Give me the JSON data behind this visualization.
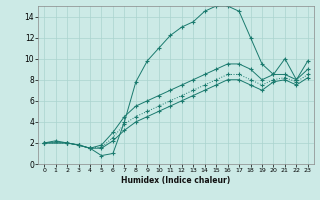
{
  "xlabel": "Humidex (Indice chaleur)",
  "bg_color": "#cceae6",
  "grid_color": "#aad4cf",
  "line_color": "#1a7a6e",
  "xlim": [
    -0.5,
    23.5
  ],
  "ylim": [
    0,
    15
  ],
  "xticks": [
    0,
    1,
    2,
    3,
    4,
    5,
    6,
    7,
    8,
    9,
    10,
    11,
    12,
    13,
    14,
    15,
    16,
    17,
    18,
    19,
    20,
    21,
    22,
    23
  ],
  "yticks": [
    0,
    2,
    4,
    6,
    8,
    10,
    12,
    14
  ],
  "series": [
    {
      "x": [
        0,
        1,
        2,
        3,
        4,
        5,
        6,
        7,
        8,
        9,
        10,
        11,
        12,
        13,
        14,
        15,
        16,
        17,
        18,
        19,
        20,
        21,
        22,
        23
      ],
      "y": [
        2,
        2.2,
        2,
        1.8,
        1.5,
        0.8,
        1.0,
        4.0,
        7.8,
        9.8,
        11.0,
        12.2,
        13.0,
        13.5,
        14.5,
        15.0,
        15.0,
        14.5,
        12.0,
        9.5,
        8.5,
        10.0,
        8.0,
        9.8
      ],
      "style": "solid"
    },
    {
      "x": [
        0,
        2,
        3,
        4,
        5,
        6,
        7,
        8,
        9,
        10,
        11,
        12,
        13,
        14,
        15,
        16,
        17,
        18,
        19,
        20,
        21,
        22,
        23
      ],
      "y": [
        2,
        2.0,
        1.8,
        1.5,
        1.8,
        3.0,
        4.5,
        5.5,
        6.0,
        6.5,
        7.0,
        7.5,
        8.0,
        8.5,
        9.0,
        9.5,
        9.5,
        9.0,
        8.0,
        8.5,
        8.5,
        8.0,
        9.0
      ],
      "style": "solid"
    },
    {
      "x": [
        0,
        2,
        3,
        4,
        5,
        6,
        7,
        8,
        9,
        10,
        11,
        12,
        13,
        14,
        15,
        16,
        17,
        18,
        19,
        20,
        21,
        22,
        23
      ],
      "y": [
        2,
        2.0,
        1.8,
        1.5,
        1.6,
        2.5,
        3.8,
        4.5,
        5.0,
        5.5,
        6.0,
        6.5,
        7.0,
        7.5,
        8.0,
        8.5,
        8.5,
        8.0,
        7.5,
        8.0,
        8.2,
        7.8,
        8.5
      ],
      "style": "dotted"
    },
    {
      "x": [
        0,
        2,
        3,
        4,
        5,
        6,
        7,
        8,
        9,
        10,
        11,
        12,
        13,
        14,
        15,
        16,
        17,
        18,
        19,
        20,
        21,
        22,
        23
      ],
      "y": [
        2,
        2.0,
        1.8,
        1.5,
        1.5,
        2.2,
        3.2,
        4.0,
        4.5,
        5.0,
        5.5,
        6.0,
        6.5,
        7.0,
        7.5,
        8.0,
        8.0,
        7.5,
        7.0,
        7.8,
        8.0,
        7.5,
        8.2
      ],
      "style": "solid"
    }
  ]
}
